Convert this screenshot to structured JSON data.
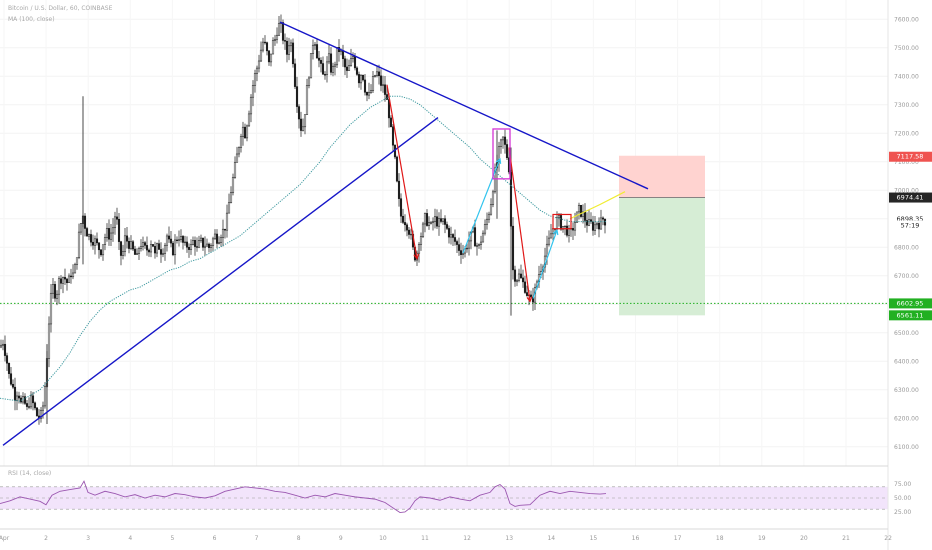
{
  "header": {
    "symbol_line": "Bitcoin / U.S. Dollar, 60, COINBASE",
    "ma_line": "MA (100, close)"
  },
  "rsi_label": "RSI (14, close)",
  "colors": {
    "trendline": "#1616c8",
    "ma": "#3f9aa0",
    "red_arrow": "#e01818",
    "cyan_arrow": "#31c4ee",
    "yellow_arrow": "#f0ec30",
    "magenta_box": "#d433d4",
    "stop_zone": "#ffd3d0",
    "target_zone": "#d6edd5",
    "support": "#22b022",
    "candle": "#1a1a1a",
    "rsi_line": "#9b57b0",
    "rsi_band": "#f2e4fb"
  },
  "price_badges": [
    {
      "label": "7117.58",
      "bg": "#ef5350",
      "fg": "#ffffff"
    },
    {
      "label": "6974.41",
      "bg": "#262626",
      "fg": "#ffffff"
    },
    {
      "label": "6898.35",
      "bg": "#ffffff",
      "fg": "#222222"
    },
    {
      "label": "57:19",
      "bg": "#ffffff",
      "fg": "#222222"
    },
    {
      "label": "6602.95",
      "bg": "#22b022",
      "fg": "#ffffff"
    },
    {
      "label": "6561.11",
      "bg": "#22b022",
      "fg": "#ffffff"
    }
  ],
  "chart_data": {
    "type": "candlestick",
    "title": "Bitcoin / U.S. Dollar, 60, COINBASE",
    "price_axis": {
      "range": [
        6050,
        7650
      ],
      "ticks": [
        "7600.00",
        "7500.00",
        "7400.00",
        "7300.00",
        "7200.00",
        "7100.00",
        "7000.00",
        "6900.00",
        "6800.00",
        "6700.00",
        "6600.00",
        "6500.00",
        "6400.00",
        "6300.00",
        "6200.00",
        "6100.00"
      ]
    },
    "time_axis": {
      "ticks": [
        "Apr",
        "2",
        "3",
        "4",
        "5",
        "6",
        "7",
        "8",
        "9",
        "10",
        "11",
        "12",
        "13",
        "14",
        "15",
        "16",
        "17",
        "18",
        "19",
        "20",
        "21",
        "22"
      ]
    },
    "close_path": [
      [
        0,
        6450
      ],
      [
        3,
        6470
      ],
      [
        6,
        6420
      ],
      [
        9,
        6350
      ],
      [
        12,
        6320
      ],
      [
        15,
        6280
      ],
      [
        18,
        6300
      ],
      [
        21,
        6250
      ],
      [
        24,
        6260
      ],
      [
        27,
        6230
      ],
      [
        30,
        6270
      ],
      [
        33,
        6250
      ],
      [
        36,
        6220
      ],
      [
        38,
        6200
      ],
      [
        41,
        6210
      ],
      [
        44,
        6260
      ],
      [
        47,
        6420
      ],
      [
        50,
        6600
      ],
      [
        53,
        6660
      ],
      [
        56,
        6630
      ],
      [
        59,
        6680
      ],
      [
        62,
        6700
      ],
      [
        65,
        6690
      ],
      [
        68,
        6670
      ],
      [
        71,
        6710
      ],
      [
        74,
        6700
      ],
      [
        77,
        6780
      ],
      [
        80,
        6870
      ],
      [
        83,
        6910
      ],
      [
        86,
        6860
      ],
      [
        89,
        6840
      ],
      [
        92,
        6830
      ],
      [
        95,
        6820
      ],
      [
        98,
        6800
      ],
      [
        101,
        6790
      ],
      [
        104,
        6830
      ],
      [
        107,
        6850
      ],
      [
        110,
        6840
      ],
      [
        113,
        6870
      ],
      [
        116,
        6930
      ],
      [
        119,
        6800
      ],
      [
        122,
        6760
      ],
      [
        125,
        6830
      ],
      [
        128,
        6820
      ],
      [
        131,
        6800
      ],
      [
        134,
        6780
      ],
      [
        137,
        6760
      ],
      [
        140,
        6820
      ],
      [
        143,
        6800
      ],
      [
        146,
        6790
      ],
      [
        149,
        6800
      ],
      [
        152,
        6830
      ],
      [
        155,
        6770
      ],
      [
        158,
        6810
      ],
      [
        161,
        6790
      ],
      [
        164,
        6800
      ],
      [
        167,
        6840
      ],
      [
        170,
        6800
      ],
      [
        173,
        6790
      ],
      [
        176,
        6830
      ],
      [
        179,
        6840
      ],
      [
        182,
        6820
      ],
      [
        185,
        6800
      ],
      [
        188,
        6810
      ],
      [
        191,
        6800
      ],
      [
        194,
        6830
      ],
      [
        197,
        6790
      ],
      [
        200,
        6820
      ],
      [
        203,
        6810
      ],
      [
        206,
        6810
      ],
      [
        209,
        6800
      ],
      [
        212,
        6820
      ],
      [
        215,
        6840
      ],
      [
        218,
        6830
      ],
      [
        221,
        6850
      ],
      [
        224,
        6860
      ],
      [
        227,
        6900
      ],
      [
        230,
        6980
      ],
      [
        233,
        7040
      ],
      [
        236,
        7100
      ],
      [
        239,
        7160
      ],
      [
        242,
        7230
      ],
      [
        245,
        7200
      ],
      [
        248,
        7260
      ],
      [
        251,
        7330
      ],
      [
        254,
        7390
      ],
      [
        257,
        7430
      ],
      [
        260,
        7480
      ],
      [
        263,
        7520
      ],
      [
        266,
        7500
      ],
      [
        269,
        7440
      ],
      [
        272,
        7510
      ],
      [
        275,
        7530
      ],
      [
        278,
        7580
      ],
      [
        281,
        7570
      ],
      [
        284,
        7520
      ],
      [
        287,
        7480
      ],
      [
        290,
        7540
      ],
      [
        293,
        7460
      ],
      [
        296,
        7340
      ],
      [
        299,
        7260
      ],
      [
        302,
        7200
      ],
      [
        305,
        7280
      ],
      [
        308,
        7390
      ],
      [
        311,
        7460
      ],
      [
        314,
        7550
      ],
      [
        317,
        7480
      ],
      [
        320,
        7440
      ],
      [
        323,
        7400
      ],
      [
        326,
        7430
      ],
      [
        329,
        7460
      ],
      [
        332,
        7410
      ],
      [
        335,
        7450
      ],
      [
        338,
        7500
      ],
      [
        341,
        7480
      ],
      [
        344,
        7440
      ],
      [
        347,
        7410
      ],
      [
        350,
        7440
      ],
      [
        353,
        7470
      ],
      [
        356,
        7430
      ],
      [
        359,
        7390
      ],
      [
        362,
        7420
      ],
      [
        365,
        7360
      ],
      [
        368,
        7320
      ],
      [
        371,
        7350
      ],
      [
        374,
        7400
      ],
      [
        377,
        7410
      ],
      [
        380,
        7380
      ],
      [
        383,
        7360
      ],
      [
        386,
        7330
      ],
      [
        389,
        7270
      ],
      [
        392,
        7170
      ],
      [
        395,
        7100
      ],
      [
        398,
        6980
      ],
      [
        401,
        6910
      ],
      [
        404,
        6900
      ],
      [
        407,
        6880
      ],
      [
        410,
        6850
      ],
      [
        413,
        6790
      ],
      [
        416,
        6760
      ],
      [
        419,
        6830
      ],
      [
        422,
        6850
      ],
      [
        425,
        6900
      ],
      [
        428,
        6890
      ],
      [
        431,
        6870
      ],
      [
        434,
        6900
      ],
      [
        437,
        6890
      ],
      [
        440,
        6880
      ],
      [
        443,
        6890
      ],
      [
        446,
        6870
      ],
      [
        449,
        6850
      ],
      [
        452,
        6830
      ],
      [
        455,
        6820
      ],
      [
        458,
        6800
      ],
      [
        461,
        6790
      ],
      [
        464,
        6780
      ],
      [
        467,
        6810
      ],
      [
        470,
        6830
      ],
      [
        473,
        6850
      ],
      [
        476,
        6810
      ],
      [
        479,
        6800
      ],
      [
        482,
        6840
      ],
      [
        485,
        6870
      ],
      [
        488,
        6910
      ],
      [
        491,
        6960
      ],
      [
        494,
        7040
      ],
      [
        497,
        7100
      ],
      [
        500,
        7150
      ],
      [
        503,
        7180
      ],
      [
        506,
        7140
      ],
      [
        509,
        7080
      ],
      [
        511,
        6880
      ],
      [
        513,
        6720
      ],
      [
        516,
        6690
      ],
      [
        519,
        6700
      ],
      [
        522,
        6680
      ],
      [
        525,
        6660
      ],
      [
        528,
        6630
      ],
      [
        531,
        6610
      ],
      [
        534,
        6630
      ],
      [
        537,
        6680
      ],
      [
        540,
        6720
      ],
      [
        543,
        6750
      ],
      [
        546,
        6780
      ],
      [
        549,
        6820
      ],
      [
        552,
        6860
      ],
      [
        555,
        6880
      ],
      [
        558,
        6900
      ],
      [
        561,
        6880
      ],
      [
        564,
        6870
      ],
      [
        567,
        6860
      ],
      [
        570,
        6840
      ],
      [
        573,
        6870
      ],
      [
        576,
        6900
      ],
      [
        579,
        6930
      ],
      [
        582,
        6920
      ],
      [
        585,
        6900
      ],
      [
        588,
        6880
      ],
      [
        591,
        6880
      ],
      [
        594,
        6870
      ],
      [
        597,
        6890
      ],
      [
        600,
        6880
      ],
      [
        603,
        6900
      ],
      [
        606,
        6890
      ]
    ],
    "ma_path": [
      [
        0,
        6270
      ],
      [
        10,
        6265
      ],
      [
        20,
        6260
      ],
      [
        30,
        6280
      ],
      [
        40,
        6300
      ],
      [
        50,
        6340
      ],
      [
        60,
        6380
      ],
      [
        70,
        6430
      ],
      [
        80,
        6490
      ],
      [
        90,
        6540
      ],
      [
        100,
        6580
      ],
      [
        110,
        6610
      ],
      [
        120,
        6630
      ],
      [
        130,
        6650
      ],
      [
        140,
        6660
      ],
      [
        150,
        6680
      ],
      [
        160,
        6700
      ],
      [
        170,
        6720
      ],
      [
        180,
        6730
      ],
      [
        190,
        6750
      ],
      [
        200,
        6760
      ],
      [
        210,
        6780
      ],
      [
        220,
        6800
      ],
      [
        230,
        6820
      ],
      [
        240,
        6840
      ],
      [
        250,
        6870
      ],
      [
        260,
        6900
      ],
      [
        270,
        6930
      ],
      [
        280,
        6960
      ],
      [
        290,
        6990
      ],
      [
        300,
        7020
      ],
      [
        310,
        7060
      ],
      [
        320,
        7100
      ],
      [
        330,
        7150
      ],
      [
        340,
        7190
      ],
      [
        350,
        7230
      ],
      [
        360,
        7260
      ],
      [
        370,
        7290
      ],
      [
        380,
        7310
      ],
      [
        390,
        7330
      ],
      [
        400,
        7330
      ],
      [
        410,
        7320
      ],
      [
        420,
        7300
      ],
      [
        430,
        7270
      ],
      [
        440,
        7240
      ],
      [
        450,
        7210
      ],
      [
        460,
        7180
      ],
      [
        470,
        7150
      ],
      [
        480,
        7110
      ],
      [
        490,
        7080
      ],
      [
        500,
        7050
      ],
      [
        510,
        7020
      ],
      [
        520,
        6990
      ],
      [
        530,
        6960
      ],
      [
        540,
        6930
      ],
      [
        550,
        6910
      ],
      [
        560,
        6900
      ],
      [
        570,
        6890
      ],
      [
        580,
        6890
      ],
      [
        590,
        6890
      ],
      [
        600,
        6890
      ],
      [
        606,
        6890
      ]
    ],
    "rsi": {
      "levels": [
        70,
        50,
        30
      ],
      "path": [
        [
          0,
          40
        ],
        [
          10,
          45
        ],
        [
          20,
          52
        ],
        [
          30,
          48
        ],
        [
          40,
          44
        ],
        [
          46,
          38
        ],
        [
          52,
          55
        ],
        [
          60,
          62
        ],
        [
          70,
          65
        ],
        [
          80,
          68
        ],
        [
          84,
          80
        ],
        [
          88,
          60
        ],
        [
          95,
          55
        ],
        [
          105,
          62
        ],
        [
          115,
          58
        ],
        [
          125,
          52
        ],
        [
          135,
          56
        ],
        [
          145,
          50
        ],
        [
          155,
          55
        ],
        [
          165,
          52
        ],
        [
          175,
          58
        ],
        [
          185,
          56
        ],
        [
          195,
          52
        ],
        [
          205,
          50
        ],
        [
          215,
          54
        ],
        [
          225,
          62
        ],
        [
          235,
          66
        ],
        [
          245,
          70
        ],
        [
          255,
          68
        ],
        [
          265,
          66
        ],
        [
          275,
          62
        ],
        [
          285,
          60
        ],
        [
          295,
          55
        ],
        [
          305,
          50
        ],
        [
          315,
          55
        ],
        [
          325,
          52
        ],
        [
          335,
          58
        ],
        [
          345,
          55
        ],
        [
          355,
          52
        ],
        [
          365,
          50
        ],
        [
          375,
          48
        ],
        [
          385,
          42
        ],
        [
          395,
          30
        ],
        [
          400,
          24
        ],
        [
          405,
          25
        ],
        [
          410,
          32
        ],
        [
          415,
          45
        ],
        [
          420,
          52
        ],
        [
          430,
          50
        ],
        [
          440,
          46
        ],
        [
          450,
          52
        ],
        [
          460,
          48
        ],
        [
          470,
          45
        ],
        [
          480,
          55
        ],
        [
          490,
          60
        ],
        [
          495,
          70
        ],
        [
          500,
          74
        ],
        [
          505,
          66
        ],
        [
          510,
          40
        ],
        [
          515,
          35
        ],
        [
          520,
          37
        ],
        [
          530,
          38
        ],
        [
          540,
          55
        ],
        [
          550,
          62
        ],
        [
          560,
          58
        ],
        [
          570,
          62
        ],
        [
          580,
          60
        ],
        [
          590,
          58
        ],
        [
          600,
          57
        ],
        [
          606,
          58
        ]
      ]
    },
    "drawings": {
      "support_price": 6602.95,
      "stop_price": 7117.58,
      "entry_price": 6974.41,
      "target_price": 6561.11,
      "last_price": 6898.35
    }
  }
}
